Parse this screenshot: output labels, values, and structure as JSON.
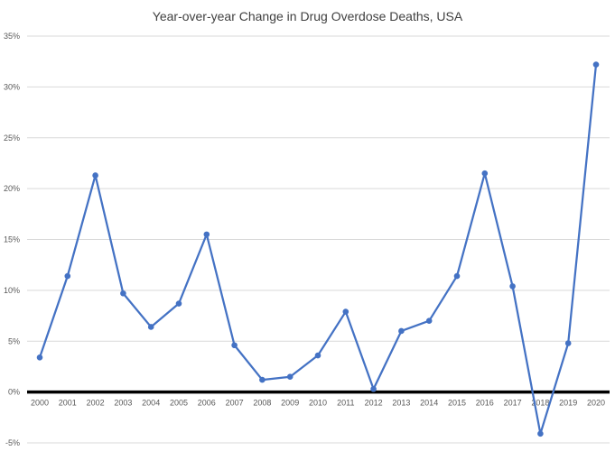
{
  "chart_data": {
    "type": "line",
    "title": "Year-over-year Change in Drug Overdose Deaths, USA",
    "xlabel": "",
    "ylabel": "",
    "categories": [
      "2000",
      "2001",
      "2002",
      "2003",
      "2004",
      "2005",
      "2006",
      "2007",
      "2008",
      "2009",
      "2010",
      "2011",
      "2012",
      "2013",
      "2014",
      "2015",
      "2016",
      "2017",
      "2018",
      "2019",
      "2020"
    ],
    "series": [
      {
        "values": [
          3.4,
          11.4,
          21.3,
          9.7,
          6.4,
          8.7,
          15.5,
          4.6,
          1.2,
          1.5,
          3.6,
          7.9,
          0.3,
          6.0,
          7.0,
          11.4,
          21.5,
          10.4,
          -4.1,
          4.8,
          32.2
        ]
      }
    ],
    "ylim": [
      -5,
      35
    ],
    "yticks": [
      -5,
      0,
      5,
      10,
      15,
      20,
      25,
      30,
      35
    ],
    "ytick_labels": [
      "-5%",
      "0%",
      "5%",
      "10%",
      "15%",
      "20%",
      "25%",
      "30%",
      "35%"
    ],
    "grid": true,
    "legend": "none",
    "colors": {
      "line": "#4472C4",
      "grid": "#D9D9D9",
      "zero_axis": "#000000"
    }
  }
}
